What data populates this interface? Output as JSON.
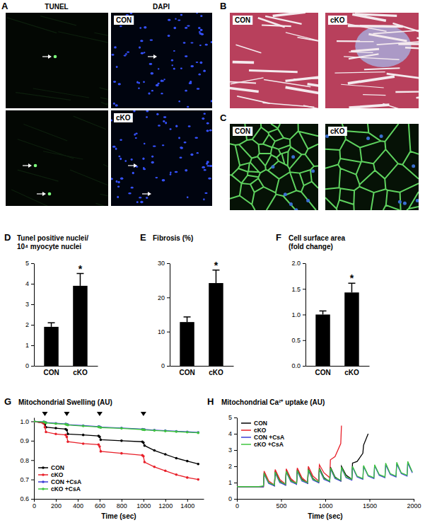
{
  "panels": [
    {
      "panel": "A",
      "headers": [
        "TUNEL",
        "DAPI"
      ],
      "rows": [
        "CON",
        "cKO"
      ]
    },
    {
      "panel": "B",
      "labels": [
        "CON",
        "cKO"
      ]
    },
    {
      "panel": "C",
      "labels": [
        "CON",
        "cKO"
      ]
    }
  ],
  "chart_data": [
    {
      "type": "bar",
      "panel": "D",
      "title": [
        "Tunel positive nuclei/",
        "10⁴ myocyte nuclei"
      ],
      "categories": [
        "CON",
        "cKO"
      ],
      "values": [
        1.9,
        3.9
      ],
      "errors": [
        0.2,
        0.6
      ],
      "color": "#000000",
      "ylim": [
        0,
        5
      ],
      "yticks": [
        0,
        1,
        2,
        3,
        4,
        5
      ],
      "annotations": [
        {
          "x": "cKO",
          "text": "*"
        }
      ]
    },
    {
      "type": "bar",
      "panel": "E",
      "title": [
        "Fibrosis (%)"
      ],
      "categories": [
        "CON",
        "cKO"
      ],
      "values": [
        12.8,
        24.2
      ],
      "errors": [
        1.5,
        3.8
      ],
      "color": "#000000",
      "ylim": [
        0,
        30
      ],
      "yticks": [
        0,
        10,
        20,
        30
      ],
      "annotations": [
        {
          "x": "cKO",
          "text": "*"
        }
      ]
    },
    {
      "type": "bar",
      "panel": "F",
      "title": [
        "Cell surface area",
        "(fold change)"
      ],
      "categories": [
        "CON",
        "cKO"
      ],
      "values": [
        1.0,
        1.43
      ],
      "errors": [
        0.07,
        0.18
      ],
      "color": "#000000",
      "ylim": [
        0,
        2
      ],
      "yticks": [
        {
          "value": 0,
          "label": "0.0"
        },
        {
          "value": 0.5,
          "label": "0.5"
        },
        {
          "value": 1,
          "label": "1.0"
        },
        {
          "value": 1.5,
          "label": "1.5"
        },
        {
          "value": 2,
          "label": "2.0"
        }
      ],
      "annotations": [
        {
          "x": "cKO",
          "text": "*"
        }
      ]
    },
    {
      "type": "line",
      "panel": "G",
      "title": "Mitochondrial Swelling (AU)",
      "x_label": "Time (sec)",
      "legend": "lower left",
      "x": [
        0,
        90,
        100,
        110,
        200,
        290,
        300,
        310,
        450,
        590,
        600,
        610,
        800,
        990,
        1000,
        1010,
        1100,
        1200,
        1300,
        1400,
        1500
      ],
      "xlim": [
        0,
        1550
      ],
      "xticks": [
        0,
        200,
        400,
        600,
        800,
        1000,
        1200,
        1400
      ],
      "ylim": [
        0.6,
        1.02
      ],
      "yticks": [
        {
          "value": 0.6,
          "label": "0.6"
        },
        {
          "value": 0.7,
          "label": "0.7"
        },
        {
          "value": 0.8,
          "label": "0.8"
        },
        {
          "value": 0.9,
          "label": "0.9"
        },
        {
          "value": 1,
          "label": "1.0"
        }
      ],
      "arrow_x": [
        100,
        300,
        600,
        1000
      ],
      "series": [
        {
          "name": "CON",
          "color": "#000000",
          "marker": "circle",
          "values": [
            1.0,
            0.99,
            0.985,
            0.97,
            0.965,
            0.96,
            0.955,
            0.935,
            0.93,
            0.925,
            0.92,
            0.905,
            0.9,
            0.895,
            0.89,
            0.875,
            0.85,
            0.83,
            0.81,
            0.795,
            0.78
          ]
        },
        {
          "name": "cKO",
          "color": "#e8202a",
          "marker": "circle",
          "values": [
            1.0,
            0.99,
            0.97,
            0.945,
            0.935,
            0.93,
            0.92,
            0.895,
            0.885,
            0.88,
            0.87,
            0.845,
            0.835,
            0.825,
            0.82,
            0.79,
            0.765,
            0.745,
            0.725,
            0.71,
            0.7
          ]
        },
        {
          "name": "CON +CsA",
          "color": "#3d3dd6",
          "marker": "circle",
          "values": [
            1.0,
            0.998,
            0.996,
            0.994,
            0.99,
            0.987,
            0.985,
            0.983,
            0.978,
            0.973,
            0.972,
            0.97,
            0.966,
            0.96,
            0.959,
            0.958,
            0.955,
            0.952,
            0.949,
            0.946,
            0.943
          ]
        },
        {
          "name": "cKO +CsA",
          "color": "#3fc43f",
          "marker": "circle",
          "values": [
            1.0,
            0.997,
            0.995,
            0.992,
            0.988,
            0.985,
            0.983,
            0.981,
            0.976,
            0.971,
            0.97,
            0.968,
            0.964,
            0.958,
            0.957,
            0.956,
            0.953,
            0.95,
            0.947,
            0.944,
            0.941
          ]
        }
      ]
    },
    {
      "type": "line",
      "panel": "H",
      "title": "Mitochondrial Ca²⁺ uptake (AU)",
      "x_label": "Time (sec)",
      "legend": "upper left",
      "x": [
        0,
        250,
        300,
        308,
        360,
        425,
        433,
        485,
        550,
        558,
        610,
        675,
        683,
        735,
        800,
        808,
        860,
        925,
        933,
        985,
        1050,
        1058,
        1110,
        1175,
        1183,
        1235,
        1300,
        1308,
        1360,
        1425,
        1433,
        1485,
        1550,
        1558,
        1610,
        1675,
        1683,
        1735,
        1800,
        1808,
        1860,
        1925,
        1933,
        1985
      ],
      "xlim": [
        0,
        2000
      ],
      "xticks": [
        0,
        500,
        1000,
        1500,
        2000
      ],
      "ylim": [
        0,
        5
      ],
      "yticks": [
        0,
        1,
        2,
        3,
        4,
        5
      ],
      "series": [
        {
          "name": "CON",
          "color": "#000000",
          "values": [
            0.75,
            0.75,
            0.75,
            1.6,
            1.0,
            0.8,
            1.7,
            1.1,
            0.85,
            1.75,
            1.15,
            0.9,
            1.8,
            1.2,
            0.95,
            1.85,
            1.25,
            1.0,
            1.9,
            1.3,
            1.05,
            1.95,
            1.35,
            1.1,
            2.0,
            1.45,
            1.2,
            2.2,
            2.3,
            2.8,
            3.3,
            4.0,
            null,
            null,
            null,
            null,
            null,
            null,
            null,
            null,
            null,
            null,
            null,
            null
          ]
        },
        {
          "name": "cKO",
          "color": "#e8202a",
          "values": [
            0.75,
            0.75,
            0.75,
            1.7,
            1.1,
            0.85,
            1.8,
            1.2,
            0.9,
            1.85,
            1.25,
            0.95,
            1.9,
            1.3,
            1.0,
            2.0,
            1.4,
            1.1,
            2.1,
            1.6,
            1.3,
            2.4,
            2.6,
            3.4,
            4.5,
            null,
            null,
            null,
            null,
            null,
            null,
            null,
            null,
            null,
            null,
            null,
            null,
            null,
            null,
            null,
            null,
            null,
            null,
            null
          ]
        },
        {
          "name": "CON +CsA",
          "color": "#3d3dd6",
          "values": [
            0.75,
            0.75,
            0.75,
            1.5,
            0.95,
            0.8,
            1.6,
            1.0,
            0.85,
            1.65,
            1.05,
            0.9,
            1.7,
            1.1,
            0.95,
            1.75,
            1.15,
            1.0,
            1.8,
            1.2,
            1.05,
            1.85,
            1.25,
            1.1,
            1.9,
            1.3,
            1.15,
            1.95,
            1.35,
            1.2,
            2.0,
            1.4,
            1.25,
            2.05,
            1.45,
            1.3,
            2.1,
            1.5,
            1.35,
            2.15,
            1.55,
            1.4,
            2.2,
            1.6
          ]
        },
        {
          "name": "cKO +CsA",
          "color": "#3fc43f",
          "values": [
            0.75,
            0.75,
            0.8,
            1.55,
            1.0,
            0.85,
            1.65,
            1.05,
            0.9,
            1.7,
            1.1,
            0.95,
            1.75,
            1.15,
            1.0,
            1.8,
            1.2,
            1.05,
            1.85,
            1.25,
            1.1,
            1.9,
            1.3,
            1.15,
            1.95,
            1.35,
            1.2,
            2.0,
            1.4,
            1.25,
            2.05,
            1.45,
            1.3,
            2.1,
            1.5,
            1.35,
            2.2,
            1.55,
            1.4,
            2.25,
            1.6,
            1.45,
            2.3,
            1.65
          ]
        }
      ]
    }
  ]
}
